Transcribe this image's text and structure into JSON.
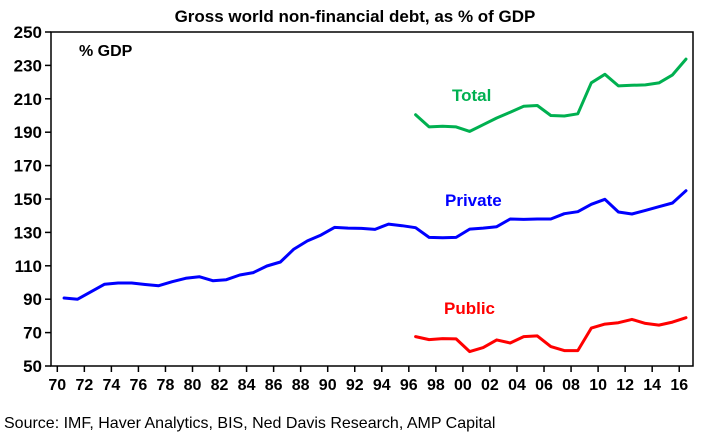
{
  "chart_data": {
    "type": "line",
    "title": "Gross world non-financial debt, as % of GDP",
    "ylabel": "% GDP",
    "xlabel": "",
    "ylim": [
      50,
      250
    ],
    "xlim": [
      1970,
      2016
    ],
    "yticks": [
      50,
      70,
      90,
      110,
      130,
      150,
      170,
      190,
      210,
      230,
      250
    ],
    "xticks": [
      1970,
      1972,
      1974,
      1976,
      1978,
      1980,
      1982,
      1984,
      1986,
      1988,
      1990,
      1992,
      1994,
      1996,
      1998,
      2000,
      2002,
      2004,
      2006,
      2008,
      2010,
      2012,
      2014,
      2016
    ],
    "xtick_labels": [
      "70",
      "72",
      "74",
      "76",
      "78",
      "80",
      "82",
      "84",
      "86",
      "88",
      "90",
      "92",
      "94",
      "96",
      "98",
      "00",
      "02",
      "04",
      "06",
      "08",
      "10",
      "12",
      "14",
      "16"
    ],
    "grid": false,
    "legend": "inline-labels",
    "series": [
      {
        "name": "Total",
        "color": "#00b050",
        "x": [
          1996,
          1997,
          1998,
          1999,
          2000,
          2001,
          2002,
          2003,
          2004,
          2005,
          2006,
          2007,
          2008,
          2009,
          2010,
          2011,
          2012,
          2013,
          2014,
          2015,
          2016
        ],
        "values": [
          200.5,
          193.2,
          193.6,
          193.2,
          190.5,
          194.5,
          198.5,
          202.0,
          205.5,
          206.0,
          200.0,
          199.7,
          201.0,
          219.6,
          224.7,
          217.7,
          218.1,
          218.3,
          219.5,
          224.3,
          233.8
        ]
      },
      {
        "name": "Private",
        "color": "#0000ff",
        "x": [
          1970,
          1971,
          1972,
          1973,
          1974,
          1975,
          1976,
          1977,
          1978,
          1979,
          1980,
          1981,
          1982,
          1983,
          1984,
          1985,
          1986,
          1987,
          1988,
          1989,
          1990,
          1991,
          1992,
          1993,
          1994,
          1995,
          1996,
          1997,
          1998,
          1999,
          2000,
          2001,
          2002,
          2003,
          2004,
          2005,
          2006,
          2007,
          2008,
          2009,
          2010,
          2011,
          2012,
          2013,
          2014,
          2015,
          2016
        ],
        "values": [
          90.7,
          90.0,
          94.5,
          99.0,
          99.7,
          99.7,
          98.8,
          98.1,
          100.5,
          102.5,
          103.5,
          101.1,
          101.7,
          104.5,
          105.9,
          109.9,
          112.3,
          120.0,
          124.9,
          128.4,
          133.0,
          132.6,
          132.4,
          131.8,
          135.0,
          134.0,
          132.8,
          127.0,
          126.8,
          127.0,
          132.0,
          132.6,
          133.4,
          138.0,
          137.8,
          138.0,
          138.0,
          141.2,
          142.4,
          146.8,
          149.8,
          142.2,
          141.0,
          143.2,
          145.4,
          147.6,
          155.0
        ]
      },
      {
        "name": "Public",
        "color": "#ff0000",
        "x": [
          1996,
          1997,
          1998,
          1999,
          2000,
          2001,
          2002,
          2003,
          2004,
          2005,
          2006,
          2007,
          2008,
          2009,
          2010,
          2011,
          2012,
          2013,
          2014,
          2015,
          2016
        ],
        "values": [
          67.6,
          65.8,
          66.4,
          66.2,
          58.6,
          61.0,
          65.6,
          63.8,
          67.6,
          68.0,
          61.6,
          59.2,
          59.2,
          72.7,
          75.1,
          75.9,
          77.9,
          75.5,
          74.5,
          76.3,
          78.9
        ]
      }
    ],
    "annotations": [
      {
        "text": "Total",
        "series": "Total"
      },
      {
        "text": "Private",
        "series": "Private"
      },
      {
        "text": "Public",
        "series": "Public"
      }
    ],
    "source": "Source: IMF, Haver Analytics, BIS, Ned Davis Research, AMP Capital"
  }
}
